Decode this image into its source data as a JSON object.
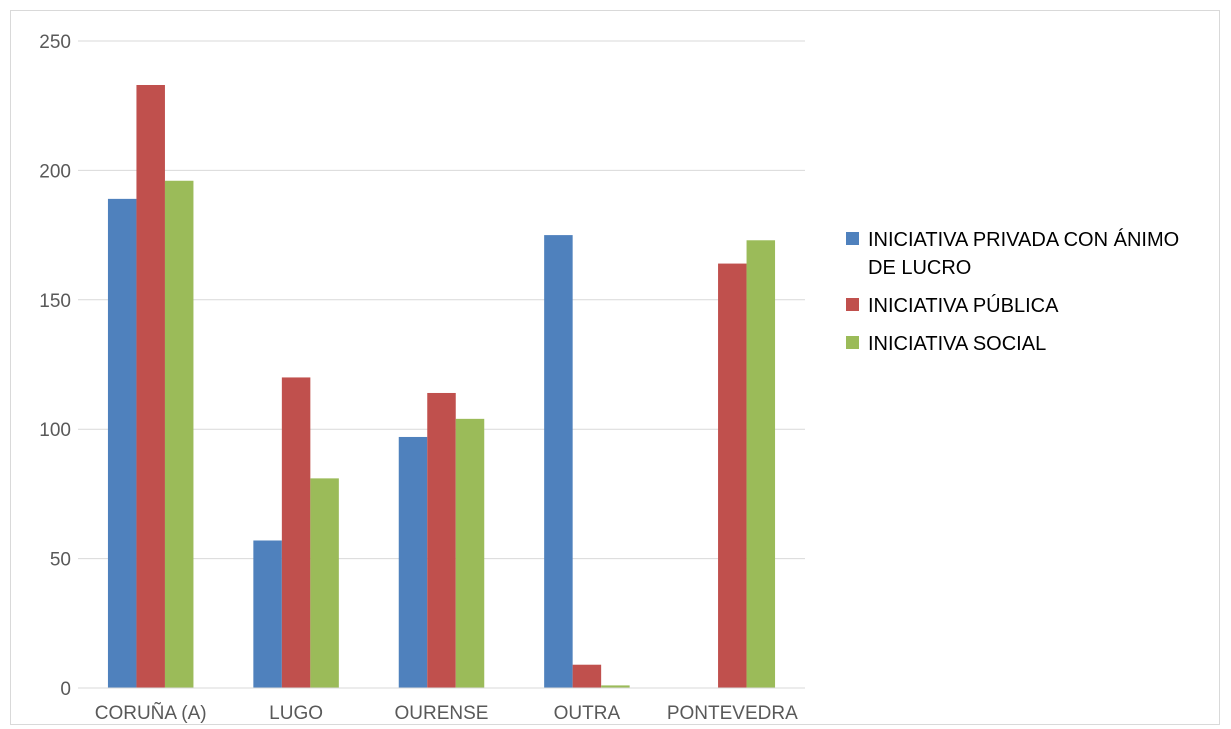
{
  "chart_data": {
    "type": "bar",
    "categories": [
      "CORUÑA (A)",
      "LUGO",
      "OURENSE",
      "OUTRA",
      "PONTEVEDRA"
    ],
    "series": [
      {
        "name": "INICIATIVA PRIVADA CON ÁNIMO DE LUCRO",
        "color": "#4f81bd",
        "values": [
          189,
          57,
          97,
          175,
          0
        ]
      },
      {
        "name": "INICIATIVA PÚBLICA",
        "color": "#c0504d",
        "values": [
          233,
          120,
          114,
          9,
          164
        ]
      },
      {
        "name": "INICIATIVA SOCIAL",
        "color": "#9bbb59",
        "values": [
          196,
          81,
          104,
          1,
          173
        ]
      }
    ],
    "legend_lines": [
      [
        "INICIATIVA PRIVADA CON ÁNIMO",
        "DE LUCRO"
      ],
      [
        "INICIATIVA PÚBLICA"
      ],
      [
        "INICIATIVA SOCIAL"
      ]
    ],
    "ylim": [
      0,
      250
    ],
    "yticks": [
      0,
      50,
      100,
      150,
      200,
      250
    ],
    "grid": true,
    "legend_position": "right",
    "title": "",
    "xlabel": "",
    "ylabel": ""
  }
}
